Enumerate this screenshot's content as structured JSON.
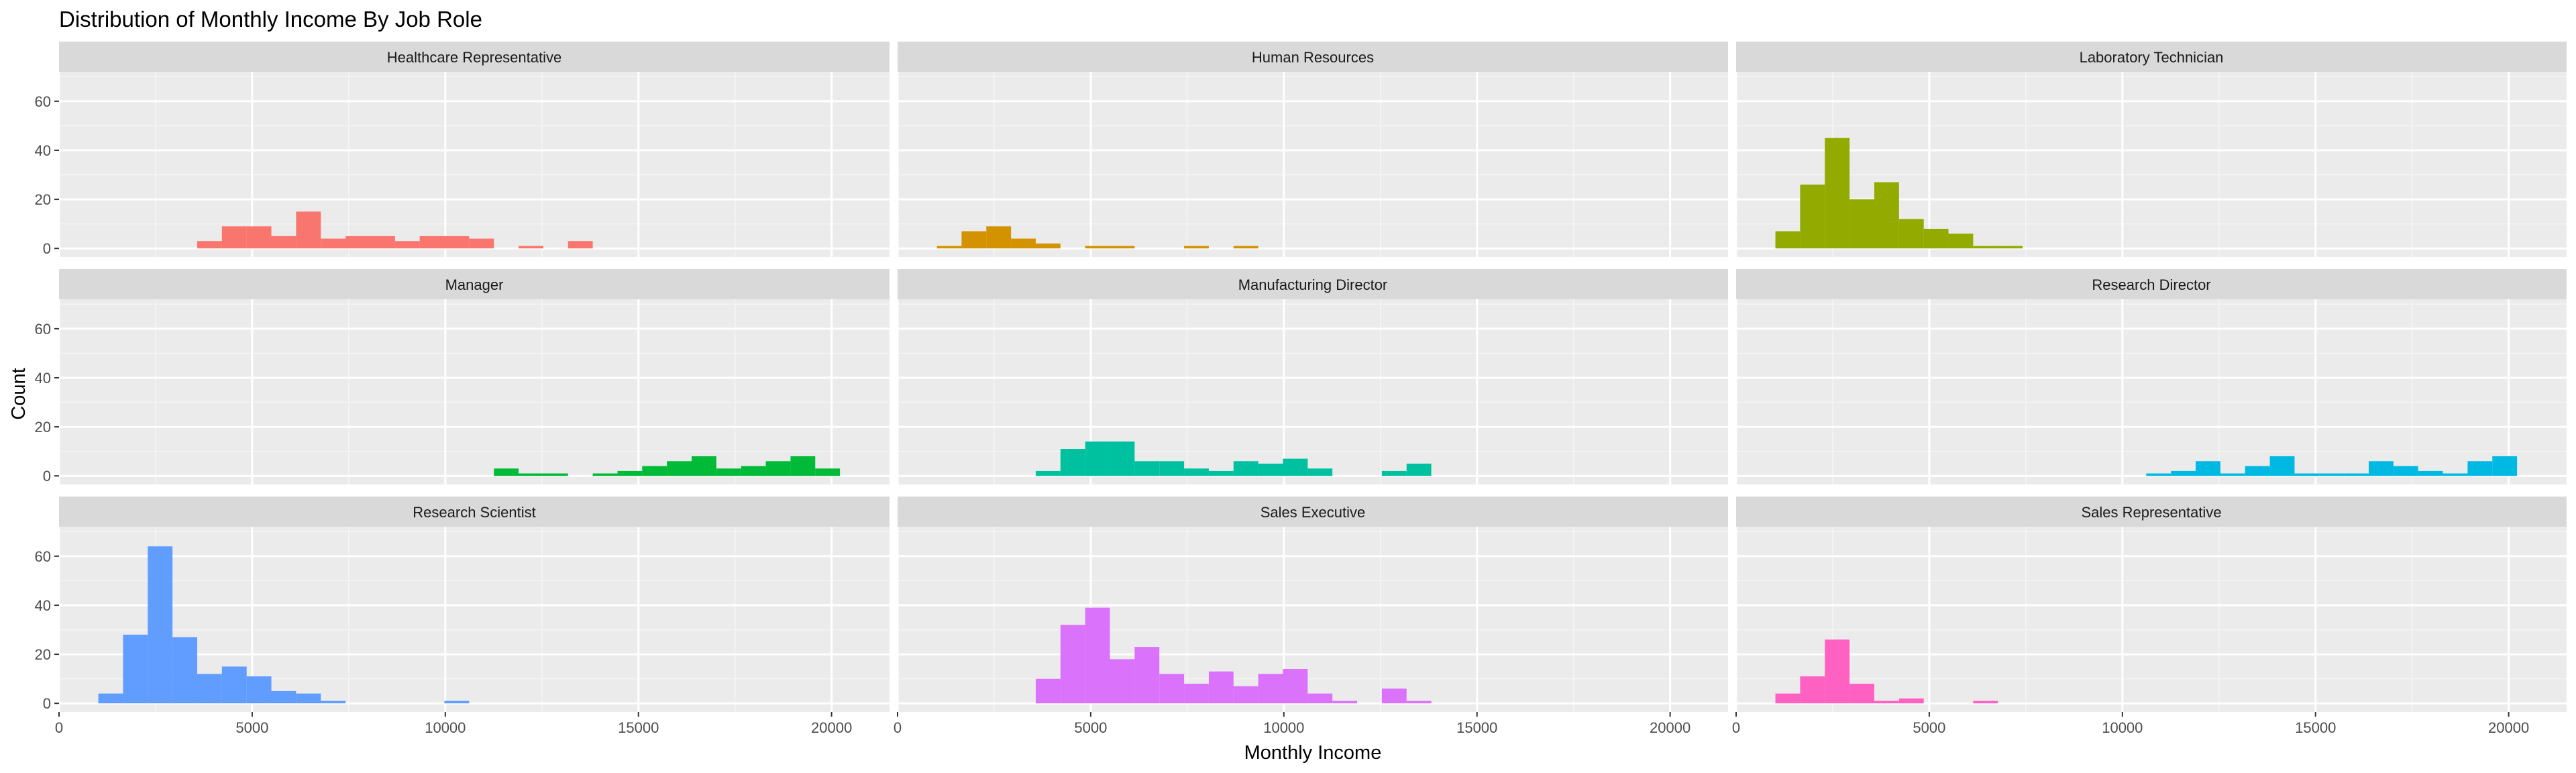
{
  "chart_data": {
    "type": "histogram",
    "title": "Distribution of Monthly Income  By Job Role",
    "xlabel": "Monthly Income",
    "ylabel": "Count",
    "xlim": [
      0,
      21500
    ],
    "ylim": [
      -3.5,
      72
    ],
    "x_ticks": [
      "0",
      "5000",
      "10000",
      "15000",
      "20000"
    ],
    "x_tick_values": [
      0,
      5000,
      10000,
      15000,
      20000
    ],
    "y_ticks": [
      "0",
      "20",
      "40",
      "60"
    ],
    "y_tick_values": [
      0,
      20,
      40,
      60
    ],
    "bin_width": 640,
    "bin_start": 1017,
    "grid": true,
    "colors": {
      "panel_bg": "#EBEBEB",
      "strip_bg": "#D9D9D9",
      "grid_major": "#FFFFFF",
      "grid_minor": "#F5F5F5"
    },
    "facets": [
      {
        "name": "Healthcare Representative",
        "color": "#F8766D",
        "counts": [
          0,
          0,
          0,
          0,
          3,
          9,
          9,
          5,
          15,
          4,
          5,
          5,
          3,
          5,
          5,
          4,
          0,
          1,
          0,
          3,
          0,
          0,
          0,
          0,
          0,
          0,
          0,
          0,
          0,
          0
        ]
      },
      {
        "name": "Human Resources",
        "color": "#D39200",
        "counts": [
          1,
          7,
          9,
          4,
          2,
          0,
          1,
          1,
          0,
          0,
          1,
          0,
          1,
          0,
          0,
          0,
          0,
          0,
          0,
          0,
          0,
          0,
          0,
          0,
          0,
          0,
          0,
          0,
          0,
          0
        ]
      },
      {
        "name": "Laboratory Technician",
        "color": "#93AA00",
        "counts": [
          7,
          26,
          45,
          20,
          27,
          12,
          8,
          6,
          1,
          1,
          0,
          0,
          0,
          0,
          0,
          0,
          0,
          0,
          0,
          0,
          0,
          0,
          0,
          0,
          0,
          0,
          0,
          0,
          0,
          0
        ]
      },
      {
        "name": "Manager",
        "color": "#00BA38",
        "counts": [
          0,
          0,
          0,
          0,
          0,
          0,
          0,
          0,
          0,
          0,
          0,
          0,
          0,
          0,
          0,
          0,
          3,
          1,
          1,
          0,
          1,
          2,
          4,
          6,
          8,
          3,
          4,
          6,
          8,
          3
        ]
      },
      {
        "name": "Manufacturing Director",
        "color": "#00C19F",
        "counts": [
          0,
          0,
          0,
          0,
          2,
          11,
          14,
          14,
          6,
          6,
          3,
          2,
          6,
          5,
          7,
          3,
          0,
          0,
          2,
          5,
          0,
          0,
          0,
          0,
          0,
          0,
          0,
          0,
          0,
          0
        ]
      },
      {
        "name": "Research Director",
        "color": "#00B9E3",
        "counts": [
          0,
          0,
          0,
          0,
          0,
          0,
          0,
          0,
          0,
          0,
          0,
          0,
          0,
          0,
          0,
          1,
          2,
          6,
          1,
          4,
          8,
          1,
          1,
          1,
          6,
          4,
          2,
          1,
          6,
          8
        ]
      },
      {
        "name": "Research Scientist",
        "color": "#619CFF",
        "counts": [
          4,
          28,
          64,
          27,
          12,
          15,
          11,
          5,
          4,
          1,
          0,
          0,
          0,
          0,
          1,
          0,
          0,
          0,
          0,
          0,
          0,
          0,
          0,
          0,
          0,
          0,
          0,
          0,
          0,
          0
        ]
      },
      {
        "name": "Sales Executive",
        "color": "#DB72FB",
        "counts": [
          0,
          0,
          0,
          0,
          10,
          32,
          39,
          18,
          23,
          12,
          8,
          13,
          7,
          12,
          14,
          4,
          1,
          0,
          6,
          1,
          0,
          0,
          0,
          0,
          0,
          0,
          0,
          0,
          0,
          0
        ]
      },
      {
        "name": "Sales Representative",
        "color": "#FF61C3",
        "counts": [
          4,
          11,
          26,
          8,
          1,
          2,
          0,
          0,
          1,
          0,
          0,
          0,
          0,
          0,
          0,
          0,
          0,
          0,
          0,
          0,
          0,
          0,
          0,
          0,
          0,
          0,
          0,
          0,
          0,
          0
        ]
      }
    ]
  }
}
